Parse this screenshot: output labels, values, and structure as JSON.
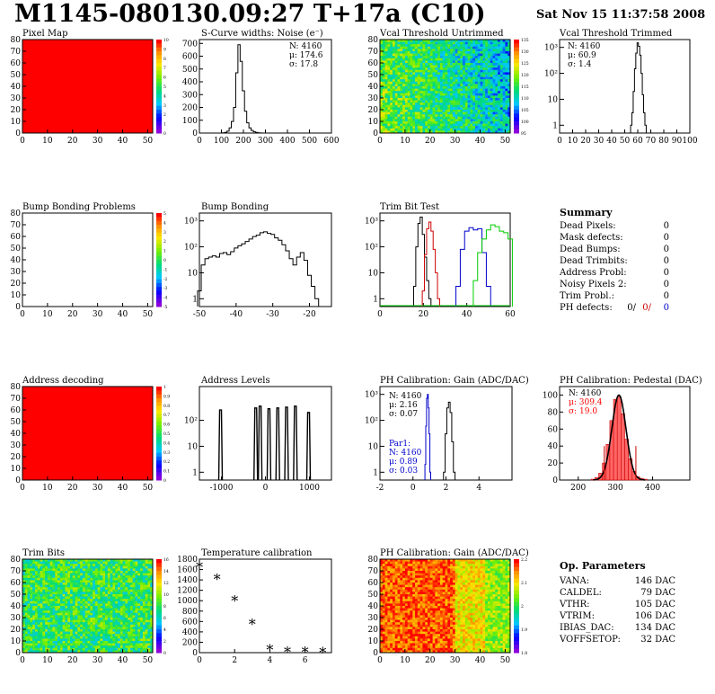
{
  "header": {
    "title": "M1145-080130.09:27 T+17a (C10)",
    "date": "Sat Nov 15 11:37:58 2008"
  },
  "panels": [
    {
      "id": "pixel-map",
      "title": "Pixel Map"
    },
    {
      "id": "scurve",
      "title": "S-Curve widths: Noise (e⁻)"
    },
    {
      "id": "vcal-untrimmed",
      "title": "Vcal Threshold Untrimmed"
    },
    {
      "id": "vcal-trimmed",
      "title": "Vcal Threshold Trimmed"
    },
    {
      "id": "bump-problems",
      "title": "Bump Bonding Problems"
    },
    {
      "id": "bump-bonding",
      "title": "Bump Bonding"
    },
    {
      "id": "trimbit-test",
      "title": "Trim Bit Test"
    },
    {
      "id": "address-decoding",
      "title": "Address decoding"
    },
    {
      "id": "address-levels",
      "title": "Address Levels"
    },
    {
      "id": "ph-gain",
      "title": "PH Calibration: Gain (ADC/DAC)"
    },
    {
      "id": "ph-pedestal",
      "title": "PH Calibration: Pedestal (DAC)"
    },
    {
      "id": "trim-bits",
      "title": "Trim Bits"
    },
    {
      "id": "temperature",
      "title": "Temperature calibration"
    },
    {
      "id": "ph-gain-map",
      "title": "PH Calibration: Gain (ADC/DAC)"
    }
  ],
  "stats": {
    "scurve": [
      "N: 4160",
      "μ: 174.6",
      "σ: 17.8"
    ],
    "vcal_trimmed": [
      "N: 4160",
      "μ: 60.9",
      "σ: 1.4"
    ],
    "ph_gain": [
      "N: 4160",
      "μ: 2.16",
      "σ: 0.07"
    ],
    "ph_gain_par1": [
      "Par1:",
      "N: 4160",
      "μ: 0.89",
      "σ: 0.03"
    ],
    "ph_pedestal": [
      "N: 4160",
      "μ: 309.4",
      "σ: 19.0"
    ]
  },
  "summary": {
    "title": "Summary",
    "rows": [
      {
        "label": "Dead Pixels:",
        "value": "0"
      },
      {
        "label": "Mask defects:",
        "value": "0"
      },
      {
        "label": "Dead Bumps:",
        "value": "0"
      },
      {
        "label": "Dead Trimbits:",
        "value": "0"
      },
      {
        "label": "Address Probl:",
        "value": "0"
      },
      {
        "label": "Noisy Pixels 2:",
        "value": "0"
      },
      {
        "label": "Trim Probl.:",
        "value": "0"
      }
    ],
    "ph_defects": {
      "label": "PH defects:",
      "values": [
        "0/",
        "0/",
        "0"
      ],
      "colors": [
        "#000000",
        "#cc0000",
        "#0000cc"
      ]
    }
  },
  "op_params": {
    "title": "Op. Parameters",
    "rows": [
      {
        "label": "VANA:",
        "value": "146 DAC"
      },
      {
        "label": "CALDEL:",
        "value": "79 DAC"
      },
      {
        "label": "VTHR:",
        "value": "105 DAC"
      },
      {
        "label": "VTRIM:",
        "value": "106 DAC"
      },
      {
        "label": "IBIAS_DAC:",
        "value": "134 DAC"
      },
      {
        "label": "VOFFSETOP:",
        "value": "32 DAC"
      }
    ]
  },
  "colorbars": {
    "pixel_map": [
      "10",
      "9",
      "8",
      "7",
      "6",
      "5",
      "4",
      "3",
      "2",
      "1",
      "0"
    ],
    "vcal_untrimmed": [
      "135",
      "130",
      "125",
      "120",
      "115",
      "110",
      "105",
      "100",
      "95"
    ],
    "bump_problems": [
      "5",
      "4",
      "3",
      "2",
      "1",
      "0",
      "-1",
      "-2",
      "-3",
      "-4",
      "-5"
    ],
    "address_decoding": [
      "1",
      "0.9",
      "0.8",
      "0.7",
      "0.6",
      "0.5",
      "0.4",
      "0.3",
      "0.2",
      "0.1",
      "0"
    ],
    "trim_bits": [
      "16",
      "14",
      "12",
      "10",
      "8",
      "6",
      "4",
      "2",
      "0"
    ],
    "ph_gain_map": [
      "2.2",
      "2.1",
      "2",
      "1.9",
      "1.8"
    ]
  },
  "colors": {
    "red": "#ff0000",
    "blue": "#0000cc",
    "green": "#00cc00",
    "black": "#000000",
    "pedestal_fill": "#ff6666"
  },
  "chart_data": [
    {
      "type": "heatmap",
      "id": "pixel-map",
      "title": "Pixel Map",
      "xlim": [
        0,
        52
      ],
      "ylim": [
        0,
        80
      ],
      "x_ticks": [
        "0",
        "10",
        "20",
        "30",
        "40",
        "50"
      ],
      "y_ticks": [
        "0",
        "10",
        "20",
        "30",
        "40",
        "50",
        "60",
        "70",
        "80"
      ],
      "fill": "uniform",
      "fill_color": "#ff0000"
    },
    {
      "type": "line",
      "id": "scurve",
      "title": "S-Curve widths: Noise (e⁻)",
      "xlim": [
        0,
        600
      ],
      "ylim": [
        0,
        730
      ],
      "x_ticks": [
        "0",
        "100",
        "200",
        "300",
        "400",
        "500",
        "600"
      ],
      "y_ticks": [
        "0",
        "100",
        "200",
        "300",
        "400",
        "500",
        "600",
        "700"
      ],
      "x": [
        110,
        120,
        130,
        140,
        150,
        160,
        170,
        180,
        190,
        200,
        210,
        220,
        230,
        240,
        250,
        260,
        270,
        280
      ],
      "y": [
        2,
        5,
        15,
        40,
        90,
        200,
        470,
        690,
        560,
        330,
        170,
        80,
        40,
        20,
        10,
        5,
        2,
        1
      ]
    },
    {
      "type": "heatmap",
      "id": "vcal-untrimmed",
      "title": "Vcal Threshold Untrimmed",
      "xlim": [
        0,
        52
      ],
      "ylim": [
        0,
        80
      ],
      "x_ticks": [
        "0",
        "10",
        "20",
        "30",
        "40",
        "50"
      ],
      "y_ticks": [
        "0",
        "10",
        "20",
        "30",
        "40",
        "50",
        "60",
        "70",
        "80"
      ],
      "fill": "noise",
      "range": [
        95,
        135
      ]
    },
    {
      "type": "line",
      "id": "vcal-trimmed",
      "title": "Vcal Threshold Trimmed",
      "xlim": [
        0,
        100
      ],
      "ylim": [
        0.5,
        2000
      ],
      "log_y": true,
      "x_ticks": [
        "0",
        "10",
        "20",
        "30",
        "40",
        "50",
        "60",
        "70",
        "80",
        "90",
        "100"
      ],
      "y_ticks": [
        "1",
        "10",
        "10²",
        "10³"
      ],
      "x": [
        55,
        56,
        57,
        58,
        59,
        60,
        61,
        62,
        63,
        64,
        65,
        66
      ],
      "y": [
        1,
        3,
        20,
        150,
        600,
        1500,
        1100,
        500,
        100,
        15,
        3,
        1
      ]
    },
    {
      "type": "heatmap",
      "id": "bump-problems",
      "title": "Bump Bonding Problems",
      "xlim": [
        0,
        52
      ],
      "ylim": [
        0,
        80
      ],
      "x_ticks": [
        "0",
        "10",
        "20",
        "30",
        "40",
        "50"
      ],
      "y_ticks": [
        "0",
        "10",
        "20",
        "30",
        "40",
        "50",
        "60",
        "70",
        "80"
      ],
      "fill": "empty"
    },
    {
      "type": "line",
      "id": "bump-bonding",
      "title": "Bump Bonding",
      "xlim": [
        -50,
        -14
      ],
      "ylim": [
        0.5,
        2000
      ],
      "log_y": true,
      "x_ticks": [
        "-50",
        "-40",
        "-30",
        "-20"
      ],
      "y_ticks": [
        "1",
        "10",
        "10²",
        "10³"
      ],
      "x": [
        -50,
        -49,
        -48,
        -47,
        -46,
        -45,
        -44,
        -43,
        -42,
        -41,
        -40,
        -39,
        -38,
        -37,
        -36,
        -35,
        -34,
        -33,
        -32,
        -31,
        -30,
        -29,
        -28,
        -27,
        -26,
        -25,
        -24,
        -23,
        -22,
        -21,
        -20,
        -19,
        -18
      ],
      "y": [
        2,
        20,
        35,
        40,
        45,
        40,
        55,
        60,
        50,
        65,
        90,
        110,
        130,
        160,
        200,
        250,
        280,
        350,
        380,
        330,
        300,
        220,
        180,
        120,
        70,
        35,
        20,
        40,
        60,
        30,
        8,
        3,
        1
      ]
    },
    {
      "type": "line",
      "id": "trimbit-test",
      "title": "Trim Bit Test",
      "xlim": [
        0,
        60
      ],
      "ylim": [
        0.5,
        2000
      ],
      "log_y": true,
      "x_ticks": [
        "0",
        "20",
        "40",
        "60"
      ],
      "y_ticks": [
        "1",
        "10",
        "10²",
        "10³"
      ],
      "series": [
        {
          "color": "#000000",
          "x": [
            16,
            17,
            18,
            19,
            20,
            21,
            22,
            23
          ],
          "y": [
            3,
            100,
            800,
            1400,
            300,
            40,
            5,
            1
          ]
        },
        {
          "color": "#cc0000",
          "x": [
            20,
            21,
            22,
            23,
            24,
            25,
            26,
            27
          ],
          "y": [
            2,
            50,
            500,
            900,
            400,
            80,
            10,
            1
          ]
        },
        {
          "color": "#0000cc",
          "x": [
            36,
            38,
            40,
            42,
            44,
            46,
            48,
            50
          ],
          "y": [
            3,
            80,
            400,
            550,
            450,
            500,
            60,
            3
          ]
        },
        {
          "color": "#00cc00",
          "x": [
            44,
            46,
            48,
            50,
            52,
            54,
            56,
            58,
            60
          ],
          "y": [
            5,
            60,
            200,
            450,
            700,
            600,
            400,
            350,
            200
          ]
        }
      ]
    },
    {
      "type": "heatmap",
      "id": "address-decoding",
      "title": "Address decoding",
      "xlim": [
        0,
        52
      ],
      "ylim": [
        0,
        80
      ],
      "x_ticks": [
        "0",
        "10",
        "20",
        "30",
        "40",
        "50"
      ],
      "y_ticks": [
        "0",
        "10",
        "20",
        "30",
        "40",
        "50",
        "60",
        "70",
        "80"
      ],
      "fill": "uniform",
      "fill_color": "#ff0000"
    },
    {
      "type": "bar",
      "id": "address-levels",
      "title": "Address Levels",
      "xlim": [
        -1500,
        1500
      ],
      "ylim": [
        0.5,
        2000
      ],
      "log_y": true,
      "x_ticks": [
        "-1000",
        "0",
        "1000"
      ],
      "y_ticks": [
        "1",
        "10",
        "10²"
      ],
      "peaks": [
        -1020,
        -220,
        -120,
        80,
        280,
        480,
        680,
        980
      ],
      "heights": [
        250,
        300,
        350,
        280,
        300,
        320,
        350,
        200
      ]
    },
    {
      "type": "line",
      "id": "ph-gain",
      "title": "PH Calibration: Gain (ADC/DAC)",
      "xlim": [
        -2,
        6
      ],
      "ylim": [
        0.5,
        2000
      ],
      "log_y": true,
      "x_ticks": [
        "-2",
        "0",
        "2",
        "4"
      ],
      "y_ticks": [
        "1",
        "10",
        "10²",
        "10³"
      ],
      "series": [
        {
          "color": "#0000cc",
          "x": [
            0.75,
            0.8,
            0.85,
            0.9,
            0.95,
            1.0,
            1.05
          ],
          "y": [
            2,
            60,
            700,
            1000,
            300,
            30,
            1
          ]
        },
        {
          "color": "#000000",
          "x": [
            1.9,
            2.0,
            2.1,
            2.2,
            2.3,
            2.4,
            2.5
          ],
          "y": [
            1,
            30,
            300,
            500,
            200,
            15,
            1
          ]
        }
      ]
    },
    {
      "type": "bar",
      "id": "ph-pedestal",
      "title": "PH Calibration: Pedestal (DAC)",
      "xlim": [
        150,
        500
      ],
      "ylim": [
        0,
        110
      ],
      "x_ticks": [
        "200",
        "300",
        "400"
      ],
      "y_ticks": [
        "0",
        "20",
        "40",
        "60",
        "80",
        "100"
      ],
      "x": [
        240,
        250,
        260,
        270,
        280,
        290,
        300,
        310,
        320,
        330,
        340,
        350,
        360,
        370,
        380
      ],
      "y": [
        1,
        3,
        8,
        20,
        42,
        70,
        95,
        98,
        78,
        48,
        25,
        10,
        4,
        2,
        1
      ],
      "fit_markers": [
        270,
        355
      ]
    },
    {
      "type": "heatmap",
      "id": "trim-bits",
      "title": "Trim Bits",
      "xlim": [
        0,
        52
      ],
      "ylim": [
        0,
        80
      ],
      "x_ticks": [
        "0",
        "10",
        "20",
        "30",
        "40",
        "50"
      ],
      "y_ticks": [
        "0",
        "10",
        "20",
        "30",
        "40",
        "50",
        "60",
        "70",
        "80"
      ],
      "fill": "noise",
      "range": [
        0,
        16
      ]
    },
    {
      "type": "scatter",
      "id": "temperature",
      "title": "Temperature calibration",
      "xlim": [
        0,
        7.5
      ],
      "ylim": [
        0,
        1800
      ],
      "x_ticks": [
        "0",
        "2",
        "4",
        "6"
      ],
      "y_ticks": [
        "0",
        "200",
        "400",
        "600",
        "800",
        "1000",
        "1200",
        "1400",
        "1600",
        "1800"
      ],
      "x": [
        0,
        1,
        2,
        3,
        4,
        5,
        6,
        7
      ],
      "y": [
        1650,
        1420,
        1000,
        550,
        60,
        20,
        20,
        10
      ]
    },
    {
      "type": "heatmap",
      "id": "ph-gain-map",
      "title": "PH Calibration: Gain (ADC/DAC)",
      "xlim": [
        0,
        52
      ],
      "ylim": [
        0,
        80
      ],
      "x_ticks": [
        "0",
        "10",
        "20",
        "30",
        "40",
        "50"
      ],
      "y_ticks": [
        "0",
        "10",
        "20",
        "30",
        "40",
        "50",
        "60",
        "70",
        "80"
      ],
      "fill": "gain",
      "range": [
        1.8,
        2.2
      ]
    }
  ]
}
